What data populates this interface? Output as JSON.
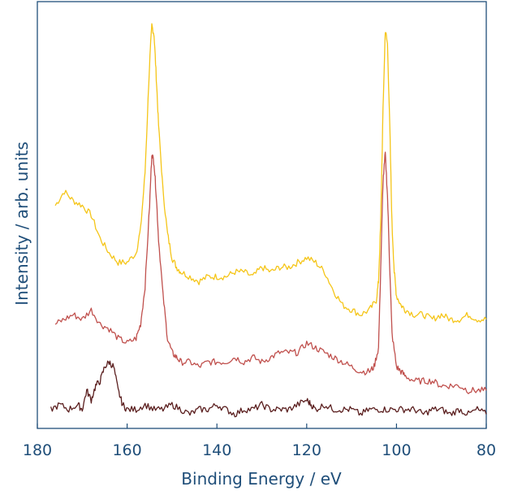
{
  "chart_data": {
    "type": "line",
    "title": "",
    "xlabel": "Binding Energy / eV",
    "ylabel": "Intensity / arb. units",
    "xlim": [
      180,
      80
    ],
    "xticks": [
      180,
      160,
      140,
      120,
      100,
      80
    ],
    "x_reversed": true,
    "y_tick_labels": false,
    "grid": false,
    "legend": "none",
    "colors": {
      "axis": "#1f4e79",
      "text": "#1f4e79",
      "series_top": "#f5c518",
      "series_middle": "#c0504d",
      "series_bottom": "#5a1e1e"
    },
    "series": [
      {
        "color": "#f5c518",
        "x": [
          176,
          174,
          172,
          170,
          168,
          166,
          164,
          162,
          160,
          158,
          157,
          156,
          155,
          154.5,
          154,
          153.5,
          153,
          152,
          151,
          150,
          149,
          148,
          146,
          144,
          142,
          140,
          138,
          136,
          134,
          132,
          130,
          128,
          126,
          124,
          122,
          120,
          118,
          116,
          114,
          112,
          110,
          108,
          106,
          104.5,
          104,
          103.5,
          103,
          102.5,
          102,
          101.5,
          101,
          100.5,
          100,
          99,
          98,
          96,
          94,
          92,
          90,
          88,
          86,
          84,
          82,
          80
        ],
        "y": [
          0.43,
          0.46,
          0.44,
          0.43,
          0.41,
          0.36,
          0.33,
          0.31,
          0.31,
          0.33,
          0.38,
          0.5,
          0.73,
          0.81,
          0.79,
          0.7,
          0.6,
          0.46,
          0.37,
          0.32,
          0.3,
          0.29,
          0.28,
          0.27,
          0.28,
          0.28,
          0.28,
          0.29,
          0.29,
          0.28,
          0.3,
          0.29,
          0.3,
          0.3,
          0.31,
          0.32,
          0.31,
          0.29,
          0.25,
          0.22,
          0.21,
          0.2,
          0.21,
          0.23,
          0.27,
          0.4,
          0.63,
          0.8,
          0.77,
          0.6,
          0.39,
          0.29,
          0.24,
          0.22,
          0.21,
          0.2,
          0.2,
          0.19,
          0.2,
          0.19,
          0.19,
          0.2,
          0.19,
          0.19
        ]
      },
      {
        "color": "#c0504d",
        "x": [
          176,
          174,
          172,
          170,
          168,
          166,
          164,
          162,
          160,
          158,
          157,
          156,
          155,
          154.5,
          154,
          153.5,
          153,
          152,
          151,
          150,
          149,
          148,
          146,
          144,
          142,
          140,
          138,
          136,
          134,
          132,
          130,
          128,
          126,
          124,
          122,
          120,
          118,
          116,
          114,
          112,
          110,
          108,
          106,
          105,
          104,
          103.5,
          103,
          102.5,
          102,
          101.5,
          101,
          100,
          99,
          98,
          96,
          94,
          92,
          90,
          88,
          86,
          84,
          82,
          80
        ],
        "y": [
          0.18,
          0.19,
          0.2,
          0.19,
          0.21,
          0.18,
          0.17,
          0.15,
          0.14,
          0.15,
          0.18,
          0.26,
          0.43,
          0.54,
          0.52,
          0.45,
          0.36,
          0.24,
          0.15,
          0.12,
          0.11,
          0.1,
          0.1,
          0.09,
          0.1,
          0.1,
          0.1,
          0.11,
          0.1,
          0.11,
          0.1,
          0.11,
          0.12,
          0.12,
          0.12,
          0.14,
          0.13,
          0.12,
          0.11,
          0.1,
          0.09,
          0.08,
          0.08,
          0.09,
          0.13,
          0.3,
          0.48,
          0.54,
          0.45,
          0.3,
          0.16,
          0.09,
          0.08,
          0.07,
          0.06,
          0.06,
          0.06,
          0.05,
          0.05,
          0.05,
          0.04,
          0.04,
          0.04
        ]
      },
      {
        "color": "#5a1e1e",
        "x": [
          177,
          175,
          173,
          171,
          170,
          169,
          168,
          167,
          166,
          165,
          164,
          163,
          162,
          161,
          160,
          158,
          156,
          154,
          152,
          150,
          148,
          146,
          144,
          142,
          140,
          138,
          136,
          134,
          132,
          130,
          128,
          126,
          124,
          122,
          120,
          119,
          118,
          116,
          114,
          112,
          110,
          108,
          106,
          104,
          102,
          100,
          98,
          96,
          94,
          92,
          90,
          88,
          86,
          84,
          82,
          80
        ],
        "y": [
          0.0,
          0.01,
          0.0,
          0.01,
          0.0,
          0.04,
          0.02,
          0.05,
          0.06,
          0.09,
          0.1,
          0.09,
          0.04,
          0.01,
          0.0,
          0.0,
          0.01,
          0.0,
          0.0,
          0.01,
          0.0,
          -0.01,
          0.0,
          0.0,
          0.01,
          0.0,
          -0.01,
          0.0,
          0.0,
          0.01,
          0.0,
          0.0,
          0.0,
          0.01,
          0.02,
          0.01,
          0.0,
          0.01,
          0.0,
          0.0,
          0.0,
          -0.01,
          0.0,
          0.0,
          0.0,
          0.0,
          0.0,
          0.0,
          -0.01,
          0.0,
          0.0,
          -0.01,
          0.0,
          -0.01,
          0.0,
          -0.01
        ]
      }
    ]
  }
}
